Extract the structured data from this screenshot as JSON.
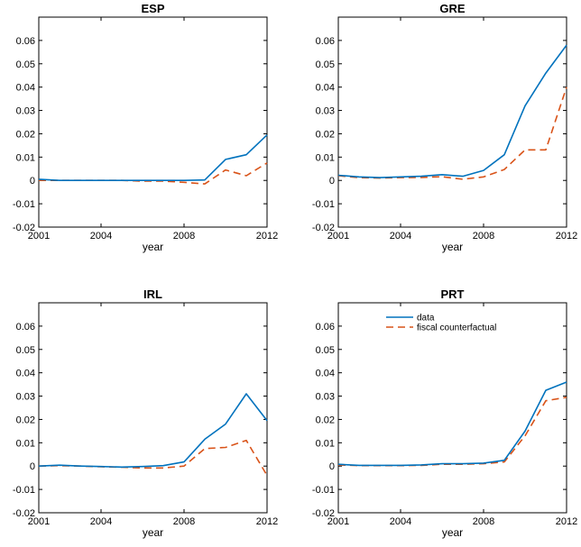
{
  "chart_data": [
    {
      "type": "line",
      "title": "ESP",
      "xlabel": "year",
      "ylabel": "",
      "xlim": [
        2001,
        2012
      ],
      "ylim": [
        -0.02,
        0.07
      ],
      "xticks": [
        "2001",
        "2004",
        "2008",
        "2012"
      ],
      "yticks": [
        "-0.02",
        "-0.01",
        "0",
        "0.01",
        "0.02",
        "0.03",
        "0.04",
        "0.05",
        "0.06"
      ],
      "x": [
        2001,
        2002,
        2003,
        2004,
        2005,
        2006,
        2007,
        2008,
        2009,
        2010,
        2011,
        2012
      ],
      "series": [
        {
          "name": "data",
          "color": "#0072BD",
          "dash": "solid",
          "values": [
            0.0005,
            0.0,
            0.0,
            0.0,
            0.0,
            0.0,
            0.0,
            0.0,
            0.0002,
            0.009,
            0.011,
            0.0195
          ]
        },
        {
          "name": "fiscal counterfactual",
          "color": "#D95319",
          "dash": "dashed",
          "values": [
            0.0,
            0.0,
            0.0,
            0.0,
            0.0,
            -0.0003,
            -0.0003,
            -0.0008,
            -0.0015,
            0.0045,
            0.002,
            0.0075
          ]
        }
      ]
    },
    {
      "type": "line",
      "title": "GRE",
      "xlabel": "year",
      "ylabel": "",
      "xlim": [
        2001,
        2012
      ],
      "ylim": [
        -0.02,
        0.07
      ],
      "xticks": [
        "2001",
        "2004",
        "2008",
        "2012"
      ],
      "yticks": [
        "-0.02",
        "-0.01",
        "0",
        "0.01",
        "0.02",
        "0.03",
        "0.04",
        "0.05",
        "0.06"
      ],
      "x": [
        2001,
        2002,
        2003,
        2004,
        2005,
        2006,
        2007,
        2008,
        2009,
        2010,
        2011,
        2012
      ],
      "series": [
        {
          "name": "data",
          "color": "#0072BD",
          "dash": "solid",
          "values": [
            0.0022,
            0.0015,
            0.0012,
            0.0015,
            0.0018,
            0.0025,
            0.0018,
            0.0043,
            0.011,
            0.032,
            0.046,
            0.058
          ]
        },
        {
          "name": "fiscal counterfactual",
          "color": "#D95319",
          "dash": "dashed",
          "values": [
            0.002,
            0.0012,
            0.001,
            0.0012,
            0.0013,
            0.0016,
            0.0005,
            0.0015,
            0.0047,
            0.0131,
            0.0131,
            0.04
          ]
        }
      ]
    },
    {
      "type": "line",
      "title": "IRL",
      "xlabel": "year",
      "ylabel": "",
      "xlim": [
        2001,
        2012
      ],
      "ylim": [
        -0.02,
        0.07
      ],
      "xticks": [
        "2001",
        "2004",
        "2008",
        "2012"
      ],
      "yticks": [
        "-0.02",
        "-0.01",
        "0",
        "0.01",
        "0.02",
        "0.03",
        "0.04",
        "0.05",
        "0.06"
      ],
      "x": [
        2001,
        2002,
        2003,
        2004,
        2005,
        2006,
        2007,
        2008,
        2009,
        2010,
        2011,
        2012
      ],
      "series": [
        {
          "name": "data",
          "color": "#0072BD",
          "dash": "solid",
          "values": [
            0.0,
            0.0004,
            0.0,
            -0.0002,
            -0.0004,
            -0.0002,
            0.0002,
            0.0018,
            0.0115,
            0.018,
            0.031,
            0.0195
          ]
        },
        {
          "name": "fiscal counterfactual",
          "color": "#D95319",
          "dash": "dashed",
          "values": [
            0.0,
            0.0002,
            0.0,
            -0.0003,
            -0.0005,
            -0.0008,
            -0.0008,
            0.0,
            0.0075,
            0.008,
            0.011,
            -0.004
          ]
        }
      ]
    },
    {
      "type": "line",
      "title": "PRT",
      "xlabel": "year",
      "ylabel": "",
      "xlim": [
        2001,
        2012
      ],
      "ylim": [
        -0.02,
        0.07
      ],
      "xticks": [
        "2001",
        "2004",
        "2008",
        "2012"
      ],
      "yticks": [
        "-0.02",
        "-0.01",
        "0",
        "0.01",
        "0.02",
        "0.03",
        "0.04",
        "0.05",
        "0.06"
      ],
      "legend": {
        "placement": "top-right",
        "entries": [
          "data",
          "fiscal counterfactual"
        ]
      },
      "x": [
        2001,
        2002,
        2003,
        2004,
        2005,
        2006,
        2007,
        2008,
        2009,
        2010,
        2011,
        2012
      ],
      "series": [
        {
          "name": "data",
          "color": "#0072BD",
          "dash": "solid",
          "values": [
            0.0008,
            0.0003,
            0.0003,
            0.0003,
            0.0005,
            0.001,
            0.001,
            0.0013,
            0.0025,
            0.015,
            0.0325,
            0.036
          ]
        },
        {
          "name": "fiscal counterfactual",
          "color": "#D95319",
          "dash": "dashed",
          "values": [
            0.0005,
            0.0002,
            0.0002,
            0.0002,
            0.0003,
            0.0008,
            0.0008,
            0.001,
            0.0018,
            0.013,
            0.028,
            0.0295
          ]
        }
      ]
    }
  ]
}
